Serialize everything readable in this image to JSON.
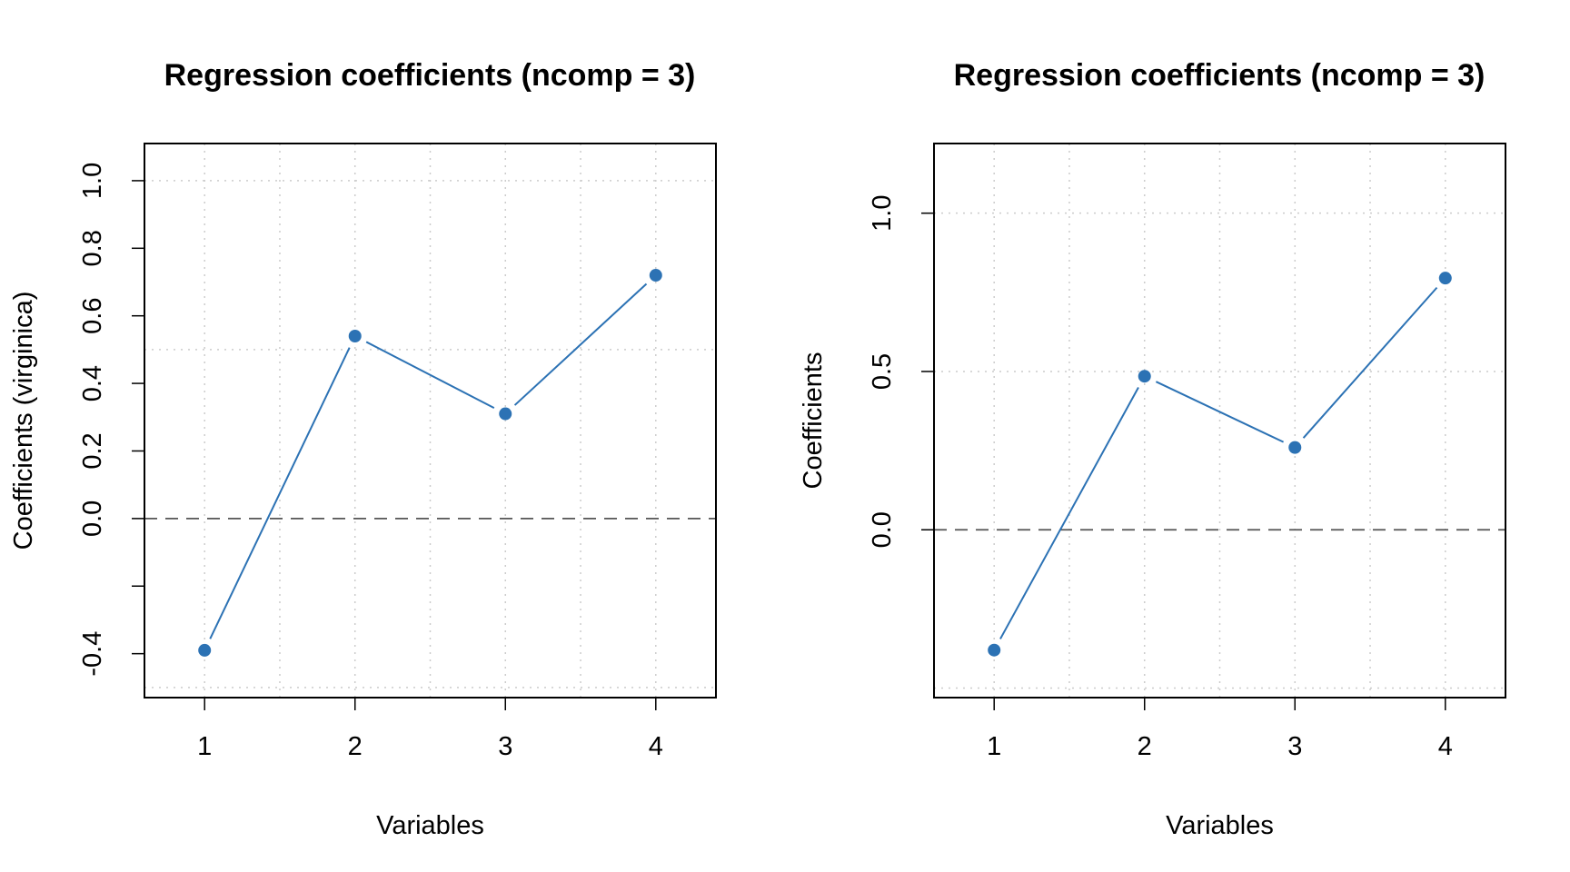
{
  "chart_data": [
    {
      "type": "line",
      "title": "Regression coefficients (ncomp = 3)",
      "xlabel": "Variables",
      "ylabel": "Coefficients (virginica)",
      "x": [
        1,
        2,
        3,
        4
      ],
      "values": [
        -0.39,
        0.54,
        0.31,
        0.72
      ],
      "xlim": [
        0.6,
        4.4
      ],
      "ylim": [
        -0.53,
        1.11
      ],
      "xticks": [
        1,
        2,
        3,
        4
      ],
      "yticks": [
        -0.4,
        -0.2,
        0.0,
        0.2,
        0.4,
        0.6,
        0.8,
        1.0
      ],
      "ytick_labels": [
        "-0.4",
        "",
        "0.0",
        "0.2",
        "0.4",
        "0.6",
        "0.8",
        "1.0"
      ],
      "hgrid": [
        -0.5,
        0.5,
        1.0
      ],
      "vgrid": [
        1,
        1.5,
        2,
        2.5,
        3,
        3.5,
        4
      ],
      "zero_line": 0,
      "grid": true,
      "color": "#2c72b4"
    },
    {
      "type": "line",
      "title": "Regression coefficients (ncomp = 3)",
      "xlabel": "Variables",
      "ylabel": "Coefficients",
      "x": [
        1,
        2,
        3,
        4
      ],
      "values": [
        -0.38,
        0.485,
        0.26,
        0.795
      ],
      "xlim": [
        0.6,
        4.4
      ],
      "ylim": [
        -0.53,
        1.22
      ],
      "xticks": [
        1,
        2,
        3,
        4
      ],
      "yticks": [
        0.0,
        0.5,
        1.0
      ],
      "ytick_labels": [
        "0.0",
        "0.5",
        "1.0"
      ],
      "hgrid": [
        -0.5,
        0.5,
        1.0
      ],
      "vgrid": [
        1,
        1.5,
        2,
        2.5,
        3,
        3.5,
        4
      ],
      "zero_line": 0,
      "grid": true,
      "color": "#2c72b4"
    }
  ]
}
